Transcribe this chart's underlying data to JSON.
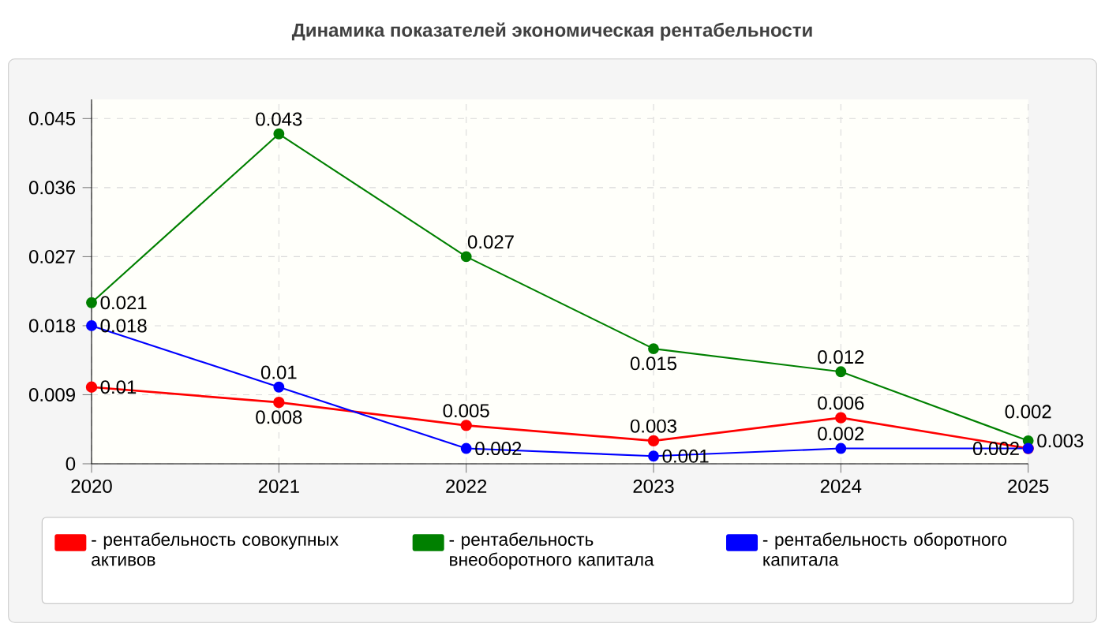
{
  "chart_data": {
    "type": "line",
    "title": "Динамика показателей экономическая рентабельности",
    "x": [
      2020,
      2021,
      2022,
      2023,
      2024,
      2025
    ],
    "xlim": [
      2020,
      2025
    ],
    "xticks": [
      2020,
      2021,
      2022,
      2023,
      2024,
      2025
    ],
    "ylim": [
      0,
      0.0475
    ],
    "yticks": [
      0,
      0.009,
      0.018,
      0.027,
      0.036,
      0.045
    ],
    "series": [
      {
        "name": "- рентабельность совокупных активов",
        "color": "#ff0000",
        "values": [
          0.01,
          0.008,
          0.005,
          0.003,
          0.006,
          0.002
        ]
      },
      {
        "name": "- рентабельность внеоборотного капитала",
        "color": "#008000",
        "values": [
          0.021,
          0.043,
          0.027,
          0.015,
          0.012,
          0.003
        ]
      },
      {
        "name": "- рентабельность оборотного капитала",
        "color": "#0000ff",
        "values": [
          0.018,
          0.01,
          0.002,
          0.001,
          0.002,
          0.002
        ]
      }
    ],
    "data_labels": true,
    "grid": true,
    "legend": "bottom",
    "marker": "circle",
    "line_style": "solid"
  }
}
